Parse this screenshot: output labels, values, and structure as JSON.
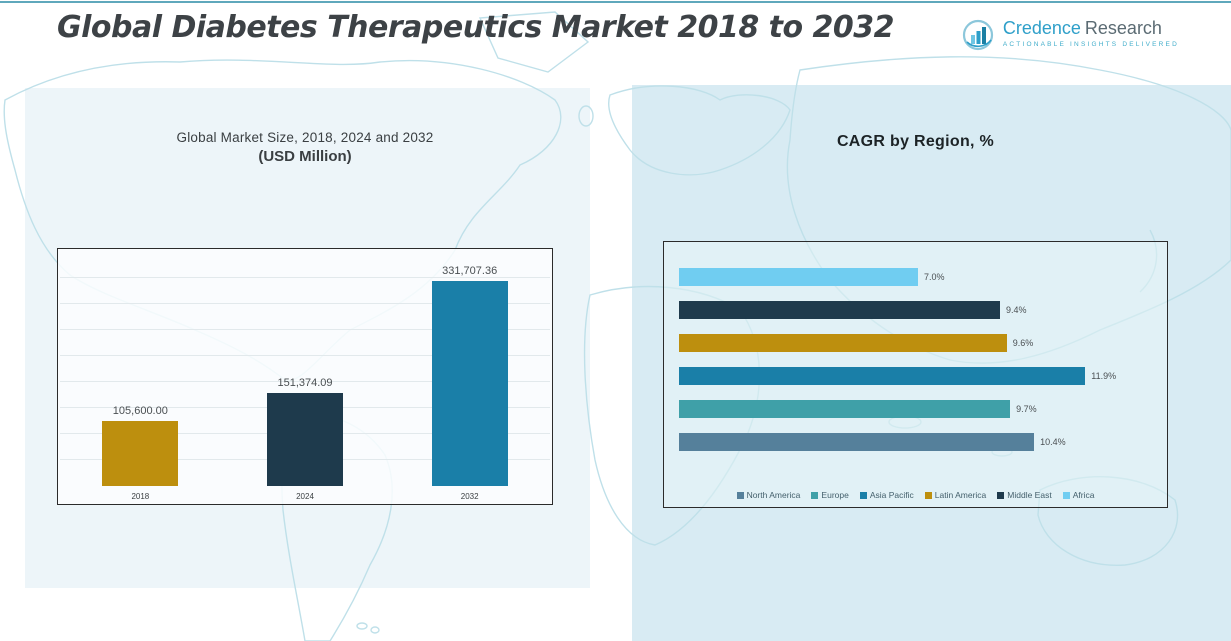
{
  "page": {
    "title": "Global Diabetes Therapeutics Market 2018 to 2032"
  },
  "logo": {
    "brand_primary": "Credence",
    "brand_secondary": "Research",
    "tagline": "Actionable Insights Delivered"
  },
  "chart_data": [
    {
      "type": "bar",
      "title": "Global Market Size, 2018, 2024 and 2032",
      "subtitle": "(USD Million)",
      "categories": [
        "2018",
        "2024",
        "2032"
      ],
      "values": [
        105600.0,
        151374.09,
        331707.36
      ],
      "value_labels": [
        "105,600.00",
        "151,374.09",
        "331,707.36"
      ],
      "colors": [
        "#BD8F0E",
        "#1E3A4C",
        "#1A7FA8"
      ],
      "xlabel": "",
      "ylabel": "",
      "ylim": [
        0,
        350000
      ],
      "grid": true,
      "legend_position": "none"
    },
    {
      "type": "bar-horizontal",
      "title": "CAGR by Region, %",
      "categories": [
        "Africa",
        "Middle East",
        "Latin America",
        "Asia Pacific",
        "Europe",
        "North America"
      ],
      "values": [
        7.0,
        9.4,
        9.6,
        11.9,
        9.7,
        10.4
      ],
      "value_labels": [
        "7.0%",
        "9.4%",
        "9.6%",
        "11.9%",
        "9.7%",
        "10.4%"
      ],
      "colors": [
        "#70CDF1",
        "#1E3A4C",
        "#BD8F0E",
        "#1A7FA8",
        "#3FA0A8",
        "#55809B"
      ],
      "xlabel": "",
      "ylabel": "",
      "xlim": [
        0,
        14
      ],
      "grid": false,
      "legend_position": "bottom",
      "legend": [
        {
          "label": "North America",
          "color": "#55809B"
        },
        {
          "label": "Europe",
          "color": "#3FA0A8"
        },
        {
          "label": "Asia Pacific",
          "color": "#1A7FA8"
        },
        {
          "label": "Latin America",
          "color": "#BD8F0E"
        },
        {
          "label": "Middle East",
          "color": "#1E3A4C"
        },
        {
          "label": "Africa",
          "color": "#70CDF1"
        }
      ]
    }
  ]
}
